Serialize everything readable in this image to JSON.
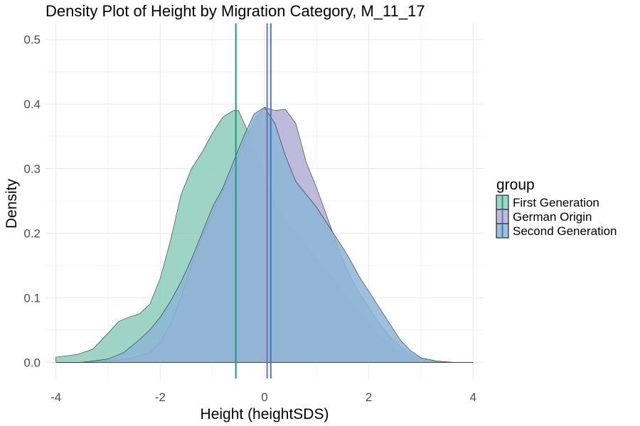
{
  "chart_data": {
    "type": "area",
    "title": "Density Plot of Height by Migration Category, M_11_17",
    "xlabel": "Height (heightSDS)",
    "ylabel": "Density",
    "xlim": [
      -4.2,
      4.2
    ],
    "ylim": [
      -0.025,
      0.525
    ],
    "x_ticks": [
      -4,
      -2,
      0,
      2,
      4
    ],
    "y_ticks": [
      0.0,
      0.1,
      0.2,
      0.3,
      0.4,
      0.5
    ],
    "x_tick_labels": [
      "-4",
      "-2",
      "0",
      "2",
      "4"
    ],
    "y_tick_labels": [
      "0.0",
      "0.1",
      "0.2",
      "0.3",
      "0.4",
      "0.5"
    ],
    "grid": true,
    "legend": {
      "title": "group",
      "placement": "right",
      "entries": [
        "First Generation",
        "German Origin",
        "Second Generation"
      ]
    },
    "series": [
      {
        "name": "First Generation",
        "color": "#1b9e77",
        "fill": "#8ccdb8",
        "mean": -0.55,
        "x": [
          -4.0,
          -3.6,
          -3.3,
          -3.0,
          -2.8,
          -2.6,
          -2.4,
          -2.2,
          -2.0,
          -1.8,
          -1.6,
          -1.4,
          -1.2,
          -1.0,
          -0.8,
          -0.6,
          -0.5,
          -0.4,
          -0.2,
          0.0,
          0.2,
          0.4,
          0.6,
          0.8,
          1.0,
          1.2,
          1.4,
          1.6,
          1.8,
          2.0,
          2.2,
          2.5,
          2.8,
          3.0,
          3.3,
          3.6,
          4.0
        ],
        "y": [
          0.008,
          0.012,
          0.02,
          0.045,
          0.063,
          0.07,
          0.075,
          0.09,
          0.13,
          0.19,
          0.26,
          0.3,
          0.325,
          0.355,
          0.38,
          0.39,
          0.39,
          0.372,
          0.335,
          0.285,
          0.245,
          0.22,
          0.2,
          0.18,
          0.16,
          0.14,
          0.12,
          0.1,
          0.08,
          0.06,
          0.04,
          0.02,
          0.008,
          0.003,
          0.001,
          0.0,
          0.0
        ]
      },
      {
        "name": "German Origin",
        "color": "#7570b3",
        "fill": "#b2aed6",
        "mean": 0.05,
        "x": [
          -4.0,
          -3.5,
          -3.0,
          -2.6,
          -2.2,
          -2.0,
          -1.8,
          -1.6,
          -1.4,
          -1.2,
          -1.0,
          -0.8,
          -0.6,
          -0.4,
          -0.2,
          0.0,
          0.2,
          0.4,
          0.6,
          0.8,
          1.0,
          1.2,
          1.4,
          1.6,
          1.8,
          2.0,
          2.2,
          2.4,
          2.6,
          2.8,
          3.0,
          3.3,
          3.6,
          4.0
        ],
        "y": [
          0.0,
          0.0,
          0.002,
          0.005,
          0.015,
          0.03,
          0.06,
          0.1,
          0.15,
          0.195,
          0.23,
          0.265,
          0.3,
          0.34,
          0.375,
          0.395,
          0.39,
          0.392,
          0.37,
          0.31,
          0.27,
          0.225,
          0.18,
          0.14,
          0.11,
          0.085,
          0.06,
          0.04,
          0.025,
          0.012,
          0.005,
          0.001,
          0.0,
          0.0
        ]
      },
      {
        "name": "Second Generation",
        "color": "#377eb8",
        "fill": "#8db5d6",
        "mean": 0.12,
        "x": [
          -4.0,
          -3.5,
          -3.0,
          -2.7,
          -2.4,
          -2.2,
          -2.0,
          -1.8,
          -1.6,
          -1.4,
          -1.2,
          -1.0,
          -0.8,
          -0.6,
          -0.4,
          -0.2,
          0.0,
          0.2,
          0.4,
          0.6,
          0.8,
          1.0,
          1.2,
          1.4,
          1.6,
          1.8,
          2.0,
          2.2,
          2.4,
          2.6,
          2.8,
          3.0,
          3.3,
          3.6,
          4.0
        ],
        "y": [
          0.0,
          0.0,
          0.005,
          0.015,
          0.035,
          0.05,
          0.07,
          0.095,
          0.125,
          0.16,
          0.2,
          0.24,
          0.27,
          0.31,
          0.35,
          0.385,
          0.395,
          0.37,
          0.32,
          0.28,
          0.26,
          0.24,
          0.215,
          0.19,
          0.165,
          0.135,
          0.11,
          0.085,
          0.06,
          0.035,
          0.018,
          0.007,
          0.002,
          0.0,
          0.0
        ]
      }
    ]
  }
}
